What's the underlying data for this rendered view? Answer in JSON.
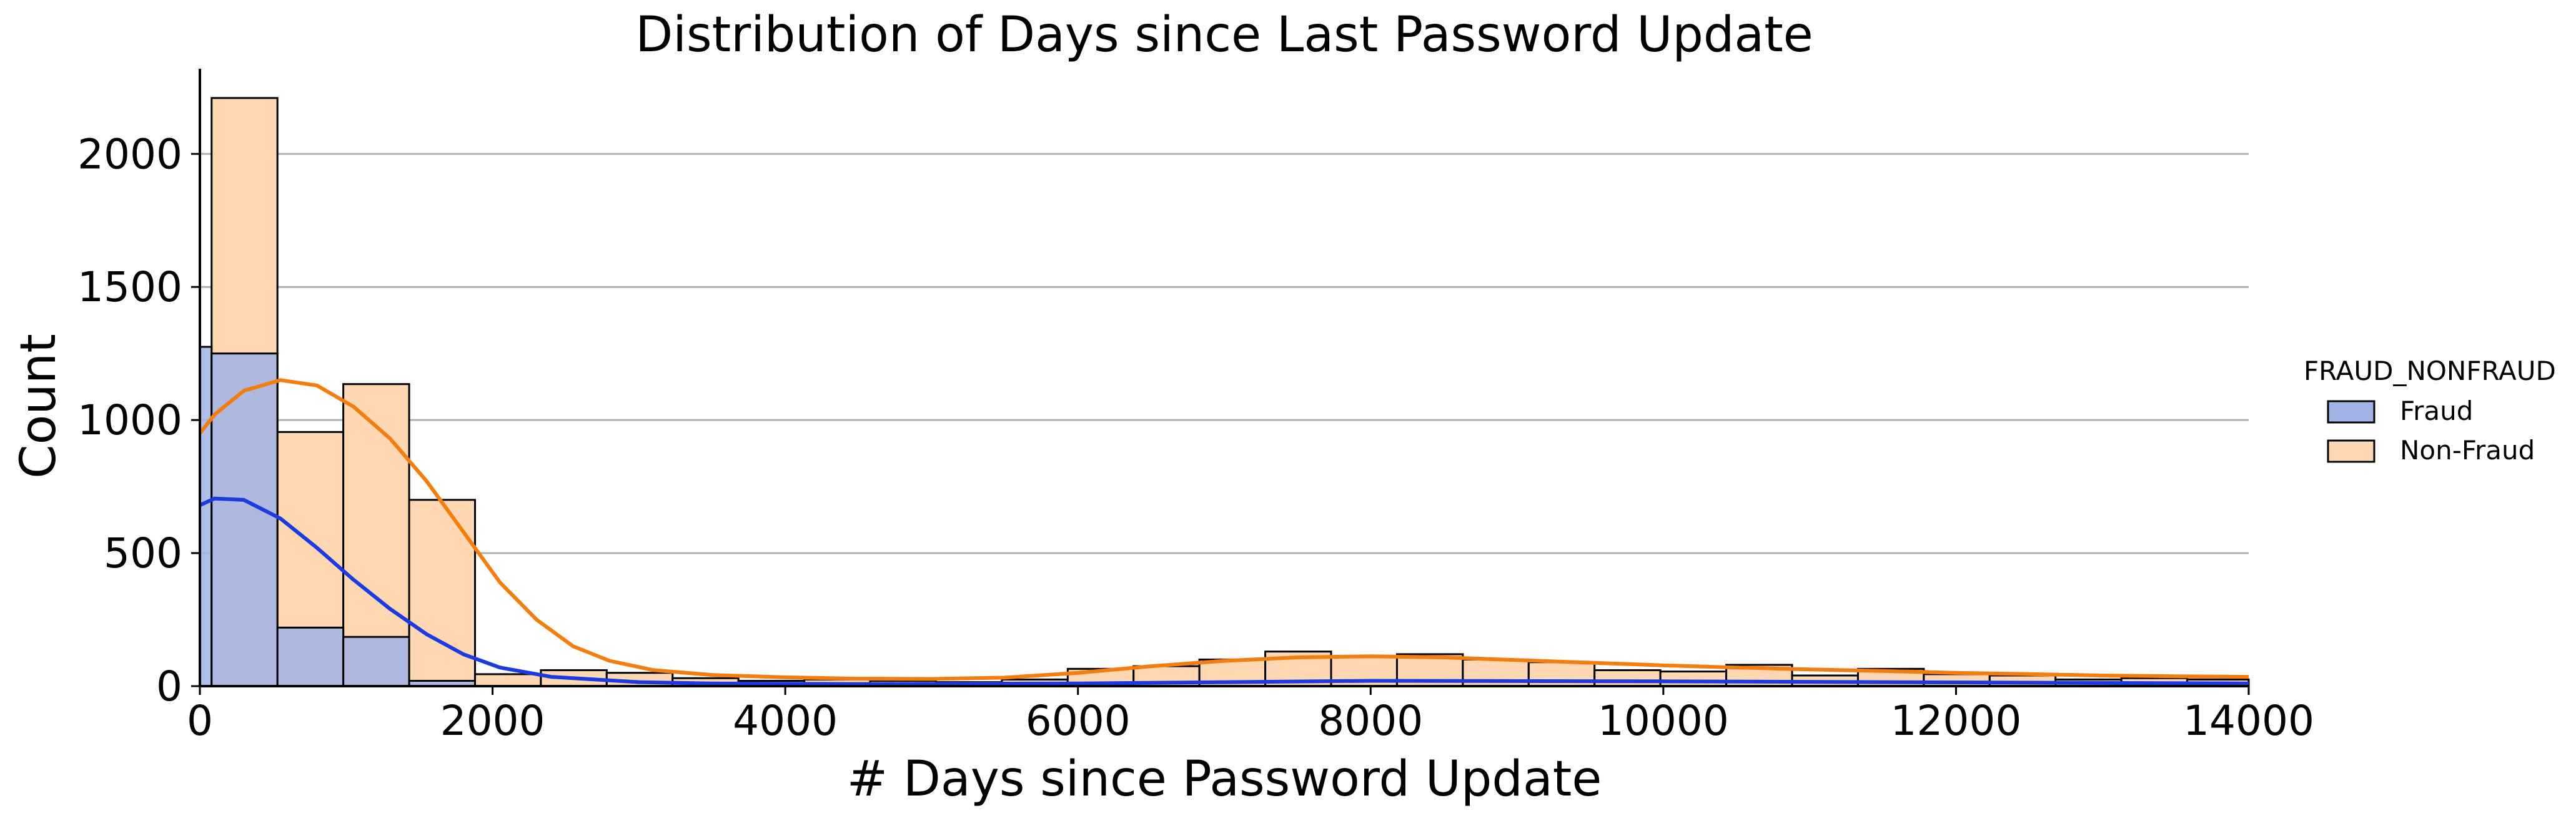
{
  "chart_data": {
    "type": "histogram",
    "title": "Distribution of Days since Last Password Update",
    "xlabel": "# Days since Password Update",
    "ylabel": "Count",
    "xlim": [
      0,
      14000
    ],
    "ylim": [
      0,
      2320
    ],
    "xticks": [
      0,
      2000,
      4000,
      6000,
      8000,
      10000,
      12000,
      14000
    ],
    "yticks": [
      0,
      500,
      1000,
      1500,
      2000
    ],
    "grid": "y",
    "legend": {
      "title": "FRAUD_NONFRAUD",
      "placement": "right",
      "entries": [
        "Fraud",
        "Non-Fraud"
      ]
    },
    "series": [
      {
        "name": "Fraud",
        "color": "#a1b4e6",
        "kde_color": "#1a3be0",
        "x": [
          0,
          80,
          530,
          980,
          1430
        ],
        "values": [
          1275,
          1250,
          220,
          185,
          20
        ],
        "widths": [
          80,
          450,
          450,
          450,
          450
        ],
        "kde_x": [
          0,
          100,
          300,
          550,
          800,
          1050,
          1300,
          1550,
          1800,
          2050,
          2400,
          3000,
          3500,
          4500,
          6000,
          8000,
          10000,
          12000,
          14000
        ],
        "kde_y": [
          680,
          705,
          700,
          630,
          520,
          400,
          290,
          195,
          120,
          70,
          35,
          15,
          10,
          8,
          10,
          20,
          18,
          14,
          10
        ]
      },
      {
        "name": "Non-Fraud",
        "color": "#ffd7b3",
        "kde_color": "#f47d0f",
        "x": [
          80,
          530,
          980,
          1430,
          1880,
          2330,
          2780,
          3230,
          3680,
          4130,
          4580,
          5030,
          5480,
          5930,
          6380,
          6830,
          7280,
          7730,
          8180,
          8630,
          9080,
          9530,
          9980,
          10430,
          10880,
          11330,
          11780,
          12230,
          12680,
          13130,
          13580
        ],
        "values": [
          2210,
          955,
          1135,
          700,
          45,
          60,
          50,
          30,
          20,
          25,
          20,
          15,
          25,
          65,
          75,
          100,
          130,
          110,
          120,
          100,
          90,
          60,
          55,
          80,
          40,
          65,
          45,
          40,
          25,
          30,
          25
        ],
        "widths": [
          450,
          450,
          450,
          450,
          450,
          450,
          450,
          450,
          450,
          450,
          450,
          450,
          450,
          450,
          450,
          450,
          450,
          450,
          450,
          450,
          450,
          450,
          450,
          450,
          450,
          450,
          450,
          450,
          450,
          450,
          420
        ],
        "kde_x": [
          0,
          100,
          300,
          550,
          800,
          1050,
          1300,
          1550,
          1800,
          2050,
          2300,
          2550,
          2800,
          3100,
          3500,
          4000,
          4500,
          5000,
          5500,
          6000,
          6500,
          7000,
          7500,
          8000,
          8500,
          9000,
          9500,
          10000,
          10500,
          11000,
          11500,
          12000,
          12500,
          13000,
          13500,
          14000
        ],
        "kde_y": [
          950,
          1020,
          1110,
          1150,
          1130,
          1050,
          930,
          770,
          580,
          390,
          250,
          150,
          95,
          60,
          42,
          33,
          28,
          27,
          32,
          50,
          75,
          95,
          108,
          112,
          108,
          98,
          88,
          78,
          70,
          63,
          57,
          50,
          45,
          40,
          37,
          35
        ]
      }
    ]
  }
}
